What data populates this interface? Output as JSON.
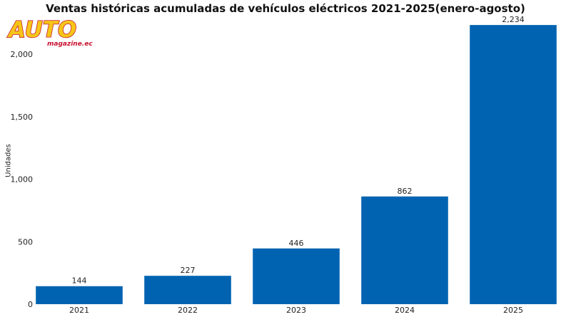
{
  "logo": {
    "main": "AUTO",
    "sub": "magazine.ec"
  },
  "colors": {
    "bar": "#0063B1",
    "logo_fill": "#F5C518",
    "logo_stroke": "#C8102E"
  },
  "chart_data": {
    "type": "bar",
    "title": "Ventas históricas acumuladas de vehículos eléctricos 2021-2025(enero-agosto)",
    "xlabel": "",
    "ylabel": "Unidades",
    "categories": [
      "2021",
      "2022",
      "2023",
      "2024",
      "2025"
    ],
    "values": [
      144,
      227,
      446,
      862,
      2234
    ],
    "value_labels": [
      "144",
      "227",
      "446",
      "862",
      "2,234"
    ],
    "ylim": [
      0,
      2400
    ],
    "yticks": [
      0,
      500,
      1000,
      1500,
      2000
    ],
    "ytick_labels": [
      "0",
      "500",
      "1,000",
      "1,500",
      "2,000"
    ],
    "grid": false,
    "legend": "none"
  }
}
